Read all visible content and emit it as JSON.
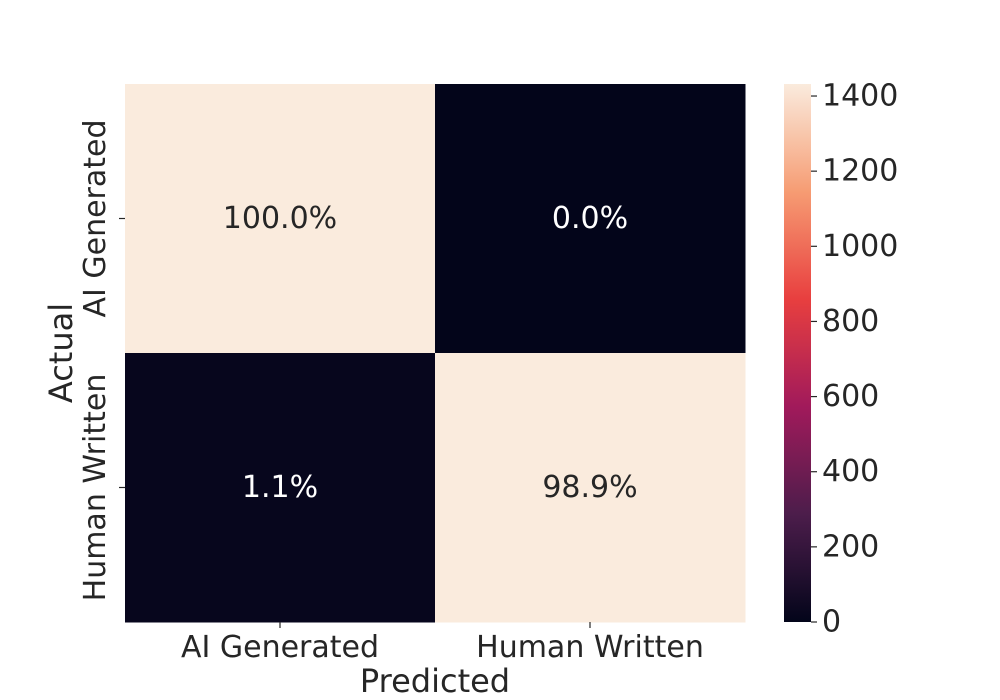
{
  "chart_data": {
    "type": "heatmap",
    "title": "",
    "xlabel": "Predicted",
    "ylabel": "Actual",
    "x_categories": [
      "AI Generated",
      "Human Written"
    ],
    "y_categories": [
      "AI Generated",
      "Human Written"
    ],
    "values": [
      [
        1432,
        0
      ],
      [
        16,
        1432
      ]
    ],
    "annotations": [
      [
        "100.0%",
        "0.0%"
      ],
      [
        "1.1%",
        "98.9%"
      ]
    ],
    "colorbar": {
      "min": 0,
      "max": 1432,
      "ticks": [
        0,
        200,
        400,
        600,
        800,
        1000,
        1200,
        1400
      ],
      "colormap": "rocket",
      "colors": [
        "#03051a",
        "#4c1d4b",
        "#a11a5b",
        "#e83f3f",
        "#f69c73",
        "#faebdd"
      ]
    },
    "grid": false
  }
}
